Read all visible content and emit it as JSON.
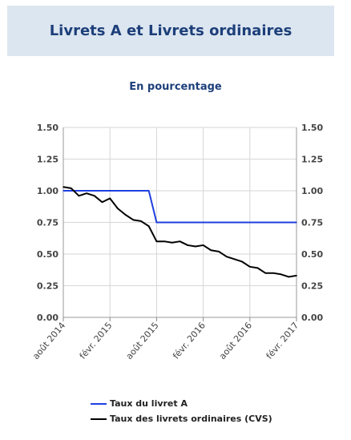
{
  "header": {
    "title": "Livrets A et Livrets ordinaires",
    "subtitle": "En pourcentage"
  },
  "chart_data": {
    "type": "line",
    "title": "Livrets A et Livrets ordinaires",
    "subtitle": "En pourcentage",
    "xlabel": "",
    "ylabel": "",
    "x": [
      "août 2014",
      "sept. 2014",
      "oct. 2014",
      "nov. 2014",
      "déc. 2014",
      "janv. 2015",
      "févr. 2015",
      "mars 2015",
      "avr. 2015",
      "mai 2015",
      "juin 2015",
      "juil. 2015",
      "août 2015",
      "sept. 2015",
      "oct. 2015",
      "nov. 2015",
      "déc. 2015",
      "janv. 2016",
      "févr. 2016",
      "mars 2016",
      "avr. 2016",
      "mai 2016",
      "juin 2016",
      "juil. 2016",
      "août 2016",
      "sept. 2016",
      "oct. 2016",
      "nov. 2016",
      "déc. 2016",
      "janv. 2017",
      "févr. 2017"
    ],
    "x_ticks": [
      "août 2014",
      "févr. 2015",
      "août 2015",
      "févr. 2016",
      "août 2016",
      "févr. 2017"
    ],
    "y_ticks": [
      "0.00",
      "0.25",
      "0.50",
      "0.75",
      "1.00",
      "1.25",
      "1.50"
    ],
    "ylim": [
      0,
      1.5
    ],
    "secondary_y_ticks": [
      "0.00",
      "0.25",
      "0.50",
      "0.75",
      "1.00",
      "1.25",
      "1.50"
    ],
    "grid": true,
    "legend_position": "bottom",
    "series": [
      {
        "name": "Taux du livret A",
        "color": "#1f3fe0",
        "values": [
          1.0,
          1.0,
          1.0,
          1.0,
          1.0,
          1.0,
          1.0,
          1.0,
          1.0,
          1.0,
          1.0,
          1.0,
          0.75,
          0.75,
          0.75,
          0.75,
          0.75,
          0.75,
          0.75,
          0.75,
          0.75,
          0.75,
          0.75,
          0.75,
          0.75,
          0.75,
          0.75,
          0.75,
          0.75,
          0.75,
          0.75
        ]
      },
      {
        "name": "Taux des livrets ordinaires (CVS)",
        "color": "#000000",
        "values": [
          1.03,
          1.02,
          0.96,
          0.98,
          0.96,
          0.91,
          0.94,
          0.86,
          0.81,
          0.77,
          0.76,
          0.72,
          0.6,
          0.6,
          0.59,
          0.6,
          0.57,
          0.56,
          0.57,
          0.53,
          0.52,
          0.48,
          0.46,
          0.44,
          0.4,
          0.39,
          0.35,
          0.35,
          0.34,
          0.32,
          0.33
        ]
      }
    ]
  }
}
